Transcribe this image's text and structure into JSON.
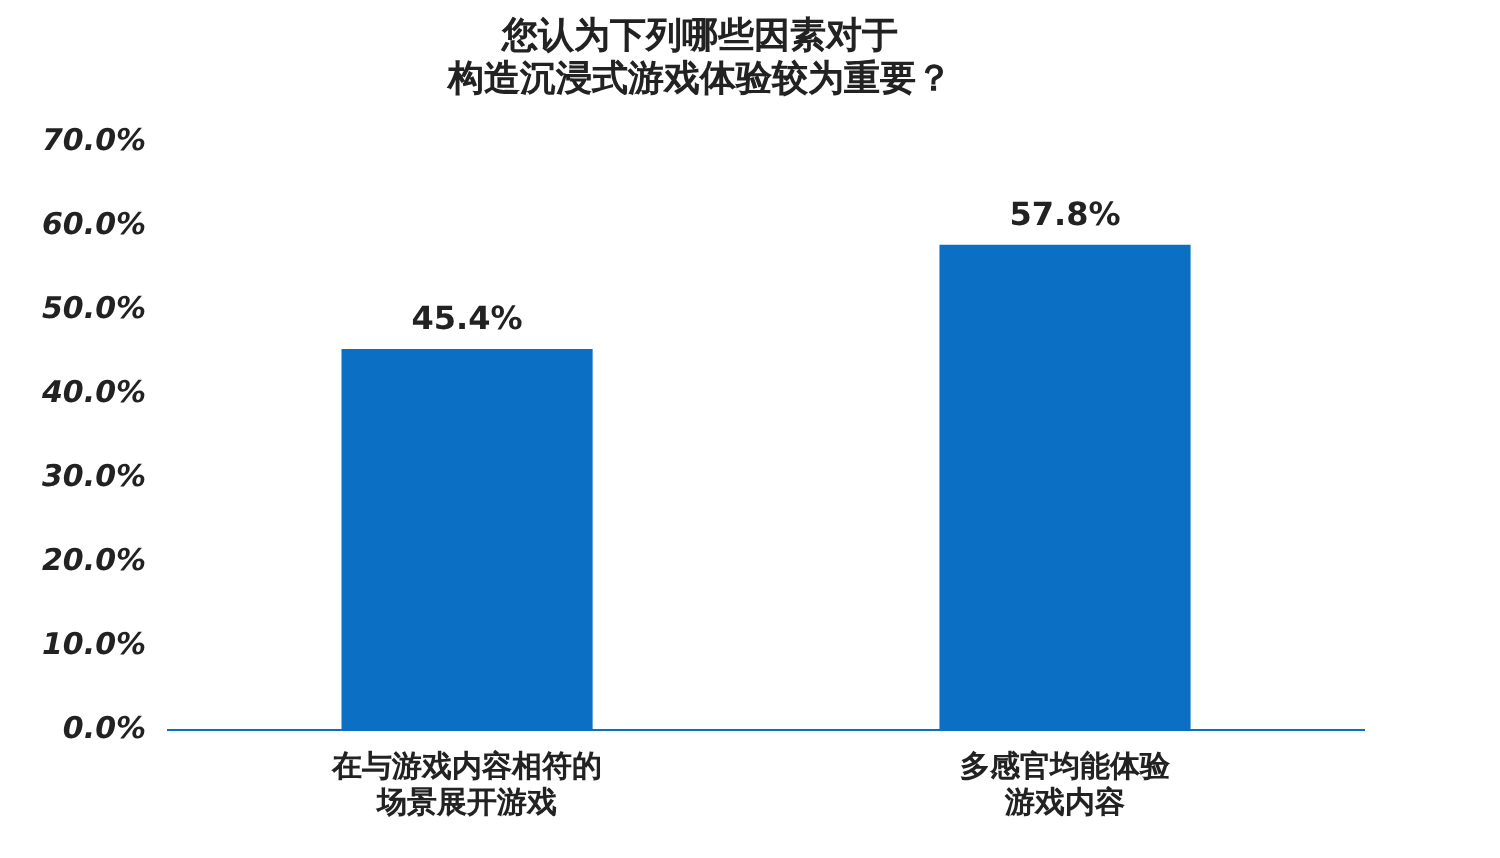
{
  "chart_data": {
    "type": "bar",
    "title": [
      "您认为下列哪些因素对于",
      "构造沉浸式游戏体验较为重要？"
    ],
    "categories": [
      "在与游戏内容相符的场景展开游戏",
      "多感官均能体验游戏内容"
    ],
    "values": [
      45.4,
      57.8
    ],
    "value_labels": [
      "45.4%",
      "57.8%"
    ],
    "color": "#0b6fc4",
    "ylim": [
      0,
      70
    ],
    "yticks": [
      {
        "value": 0,
        "label": "0.0%"
      },
      {
        "value": 10,
        "label": "10.0%"
      },
      {
        "value": 20,
        "label": "20.0%"
      },
      {
        "value": 30,
        "label": "30.0%"
      },
      {
        "value": 40,
        "label": "40.0%"
      },
      {
        "value": 50,
        "label": "50.0%"
      },
      {
        "value": 60,
        "label": "60.0%"
      },
      {
        "value": 70,
        "label": "70.0%"
      }
    ],
    "grid": false,
    "legend": false
  }
}
